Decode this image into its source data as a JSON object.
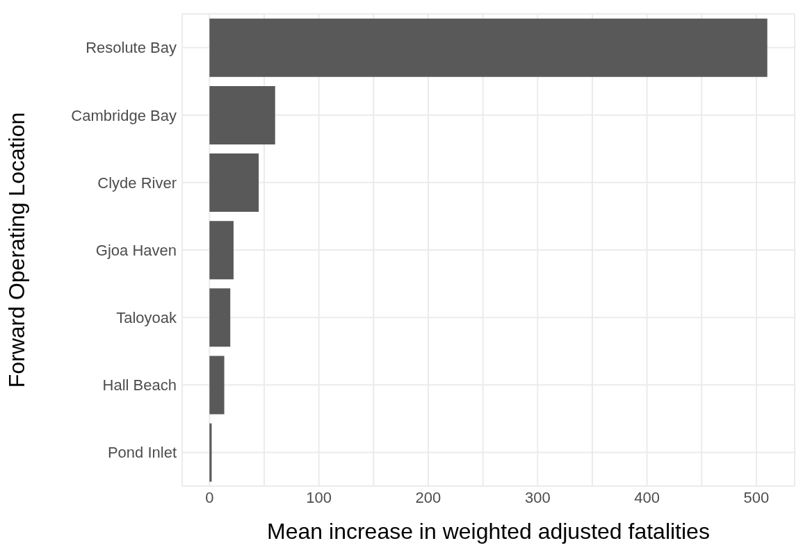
{
  "chart_data": {
    "type": "bar",
    "orientation": "horizontal",
    "xlabel": "Mean increase in weighted adjusted fatalities",
    "ylabel": "Forward Operating Location",
    "categories": [
      "Resolute Bay",
      "Cambridge Bay",
      "Clyde River",
      "Gjoa Haven",
      "Taloyoak",
      "Hall Beach",
      "Pond Inlet"
    ],
    "values": [
      510,
      60,
      45,
      22,
      19,
      13.5,
      2
    ],
    "color": "#595959",
    "xlim": [
      -25,
      535
    ],
    "xticks": [
      0,
      {
        "value": 50,
        "label": null
      },
      100,
      {
        "value": 150,
        "label": null
      },
      200,
      {
        "value": 250,
        "label": null
      },
      300,
      {
        "value": 350,
        "label": null
      },
      400,
      {
        "value": 450,
        "label": null
      },
      500
    ],
    "grid": true
  }
}
